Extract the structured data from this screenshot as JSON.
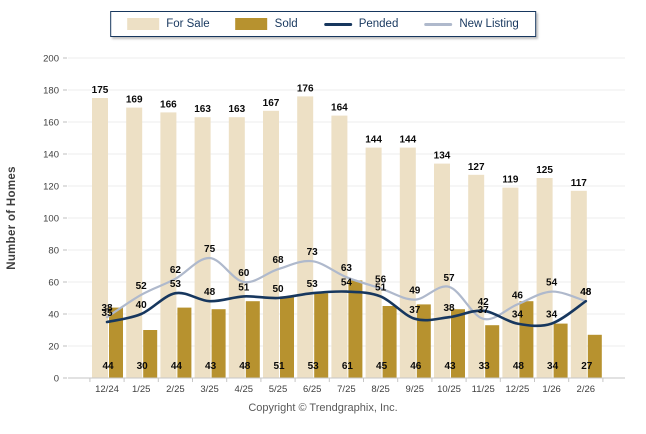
{
  "legend": {
    "items": [
      {
        "label": "For Sale",
        "swatch": "bar",
        "color": "#EDE0C5"
      },
      {
        "label": "Sold",
        "swatch": "bar",
        "color": "#B7922F"
      },
      {
        "label": "Pended",
        "swatch": "line",
        "color": "#17375E"
      },
      {
        "label": "New Listing",
        "swatch": "line",
        "color": "#AFB9CC"
      }
    ]
  },
  "chart_data": {
    "type": "bar+line combo",
    "title": "",
    "ylabel": "Number of Homes",
    "xlabel": "",
    "ylim": [
      0,
      200
    ],
    "ytick_step": 20,
    "yticks": [
      0,
      20,
      40,
      60,
      80,
      100,
      120,
      140,
      160,
      180,
      200
    ],
    "grid": true,
    "legend_position": "top",
    "categories": [
      "12/24",
      "1/25",
      "2/25",
      "3/25",
      "4/25",
      "5/25",
      "6/25",
      "7/25",
      "8/25",
      "9/25",
      "10/25",
      "11/25",
      "12/25",
      "1/26",
      "2/26"
    ],
    "series": [
      {
        "name": "For Sale",
        "type": "bar",
        "color": "#EDE0C5",
        "values": [
          175,
          169,
          166,
          163,
          163,
          167,
          176,
          164,
          144,
          144,
          134,
          127,
          119,
          125,
          117
        ]
      },
      {
        "name": "Sold",
        "type": "bar",
        "color": "#B7922F",
        "values": [
          44,
          30,
          44,
          43,
          48,
          51,
          53,
          61,
          45,
          46,
          43,
          33,
          48,
          34,
          27
        ]
      },
      {
        "name": "Pended",
        "type": "line",
        "color": "#17375E",
        "values": [
          35,
          40,
          53,
          48,
          51,
          50,
          53,
          54,
          51,
          37,
          38,
          42,
          34,
          34,
          48
        ]
      },
      {
        "name": "New Listing",
        "type": "line",
        "color": "#AFB9CC",
        "values": [
          38,
          52,
          62,
          75,
          60,
          68,
          73,
          63,
          56,
          49,
          57,
          37,
          46,
          54,
          48
        ]
      }
    ]
  },
  "footer": {
    "copyright": "Copyright © Trendgraphix, Inc."
  }
}
